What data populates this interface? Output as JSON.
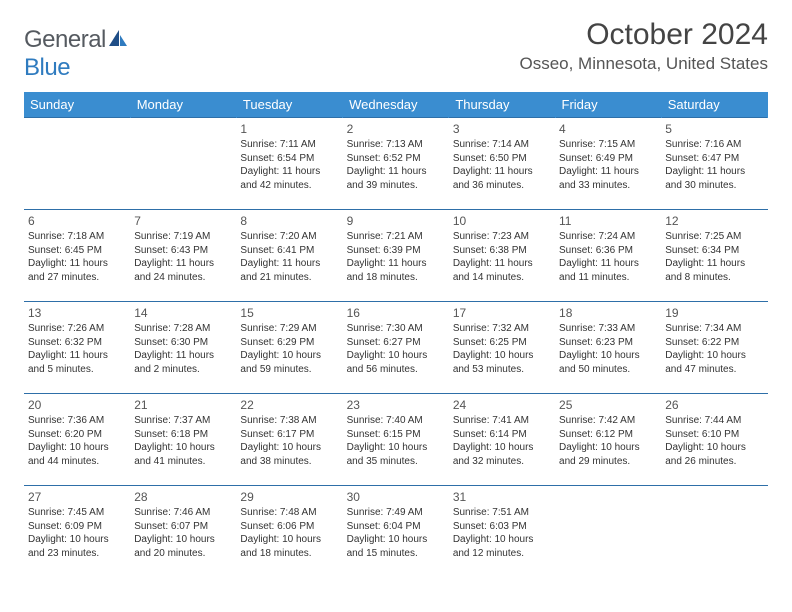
{
  "logo": {
    "general": "General",
    "blue": "Blue"
  },
  "header": {
    "title": "October 2024",
    "location": "Osseo, Minnesota, United States"
  },
  "dow": [
    "Sunday",
    "Monday",
    "Tuesday",
    "Wednesday",
    "Thursday",
    "Friday",
    "Saturday"
  ],
  "colors": {
    "header_bg": "#3a8dd0",
    "rule": "#2e6fa8",
    "logo_blue": "#2f7bbf"
  },
  "weeks": [
    [
      null,
      null,
      {
        "n": "1",
        "sr": "Sunrise: 7:11 AM",
        "ss": "Sunset: 6:54 PM",
        "dl1": "Daylight: 11 hours",
        "dl2": "and 42 minutes."
      },
      {
        "n": "2",
        "sr": "Sunrise: 7:13 AM",
        "ss": "Sunset: 6:52 PM",
        "dl1": "Daylight: 11 hours",
        "dl2": "and 39 minutes."
      },
      {
        "n": "3",
        "sr": "Sunrise: 7:14 AM",
        "ss": "Sunset: 6:50 PM",
        "dl1": "Daylight: 11 hours",
        "dl2": "and 36 minutes."
      },
      {
        "n": "4",
        "sr": "Sunrise: 7:15 AM",
        "ss": "Sunset: 6:49 PM",
        "dl1": "Daylight: 11 hours",
        "dl2": "and 33 minutes."
      },
      {
        "n": "5",
        "sr": "Sunrise: 7:16 AM",
        "ss": "Sunset: 6:47 PM",
        "dl1": "Daylight: 11 hours",
        "dl2": "and 30 minutes."
      }
    ],
    [
      {
        "n": "6",
        "sr": "Sunrise: 7:18 AM",
        "ss": "Sunset: 6:45 PM",
        "dl1": "Daylight: 11 hours",
        "dl2": "and 27 minutes."
      },
      {
        "n": "7",
        "sr": "Sunrise: 7:19 AM",
        "ss": "Sunset: 6:43 PM",
        "dl1": "Daylight: 11 hours",
        "dl2": "and 24 minutes."
      },
      {
        "n": "8",
        "sr": "Sunrise: 7:20 AM",
        "ss": "Sunset: 6:41 PM",
        "dl1": "Daylight: 11 hours",
        "dl2": "and 21 minutes."
      },
      {
        "n": "9",
        "sr": "Sunrise: 7:21 AM",
        "ss": "Sunset: 6:39 PM",
        "dl1": "Daylight: 11 hours",
        "dl2": "and 18 minutes."
      },
      {
        "n": "10",
        "sr": "Sunrise: 7:23 AM",
        "ss": "Sunset: 6:38 PM",
        "dl1": "Daylight: 11 hours",
        "dl2": "and 14 minutes."
      },
      {
        "n": "11",
        "sr": "Sunrise: 7:24 AM",
        "ss": "Sunset: 6:36 PM",
        "dl1": "Daylight: 11 hours",
        "dl2": "and 11 minutes."
      },
      {
        "n": "12",
        "sr": "Sunrise: 7:25 AM",
        "ss": "Sunset: 6:34 PM",
        "dl1": "Daylight: 11 hours",
        "dl2": "and 8 minutes."
      }
    ],
    [
      {
        "n": "13",
        "sr": "Sunrise: 7:26 AM",
        "ss": "Sunset: 6:32 PM",
        "dl1": "Daylight: 11 hours",
        "dl2": "and 5 minutes."
      },
      {
        "n": "14",
        "sr": "Sunrise: 7:28 AM",
        "ss": "Sunset: 6:30 PM",
        "dl1": "Daylight: 11 hours",
        "dl2": "and 2 minutes."
      },
      {
        "n": "15",
        "sr": "Sunrise: 7:29 AM",
        "ss": "Sunset: 6:29 PM",
        "dl1": "Daylight: 10 hours",
        "dl2": "and 59 minutes."
      },
      {
        "n": "16",
        "sr": "Sunrise: 7:30 AM",
        "ss": "Sunset: 6:27 PM",
        "dl1": "Daylight: 10 hours",
        "dl2": "and 56 minutes."
      },
      {
        "n": "17",
        "sr": "Sunrise: 7:32 AM",
        "ss": "Sunset: 6:25 PM",
        "dl1": "Daylight: 10 hours",
        "dl2": "and 53 minutes."
      },
      {
        "n": "18",
        "sr": "Sunrise: 7:33 AM",
        "ss": "Sunset: 6:23 PM",
        "dl1": "Daylight: 10 hours",
        "dl2": "and 50 minutes."
      },
      {
        "n": "19",
        "sr": "Sunrise: 7:34 AM",
        "ss": "Sunset: 6:22 PM",
        "dl1": "Daylight: 10 hours",
        "dl2": "and 47 minutes."
      }
    ],
    [
      {
        "n": "20",
        "sr": "Sunrise: 7:36 AM",
        "ss": "Sunset: 6:20 PM",
        "dl1": "Daylight: 10 hours",
        "dl2": "and 44 minutes."
      },
      {
        "n": "21",
        "sr": "Sunrise: 7:37 AM",
        "ss": "Sunset: 6:18 PM",
        "dl1": "Daylight: 10 hours",
        "dl2": "and 41 minutes."
      },
      {
        "n": "22",
        "sr": "Sunrise: 7:38 AM",
        "ss": "Sunset: 6:17 PM",
        "dl1": "Daylight: 10 hours",
        "dl2": "and 38 minutes."
      },
      {
        "n": "23",
        "sr": "Sunrise: 7:40 AM",
        "ss": "Sunset: 6:15 PM",
        "dl1": "Daylight: 10 hours",
        "dl2": "and 35 minutes."
      },
      {
        "n": "24",
        "sr": "Sunrise: 7:41 AM",
        "ss": "Sunset: 6:14 PM",
        "dl1": "Daylight: 10 hours",
        "dl2": "and 32 minutes."
      },
      {
        "n": "25",
        "sr": "Sunrise: 7:42 AM",
        "ss": "Sunset: 6:12 PM",
        "dl1": "Daylight: 10 hours",
        "dl2": "and 29 minutes."
      },
      {
        "n": "26",
        "sr": "Sunrise: 7:44 AM",
        "ss": "Sunset: 6:10 PM",
        "dl1": "Daylight: 10 hours",
        "dl2": "and 26 minutes."
      }
    ],
    [
      {
        "n": "27",
        "sr": "Sunrise: 7:45 AM",
        "ss": "Sunset: 6:09 PM",
        "dl1": "Daylight: 10 hours",
        "dl2": "and 23 minutes."
      },
      {
        "n": "28",
        "sr": "Sunrise: 7:46 AM",
        "ss": "Sunset: 6:07 PM",
        "dl1": "Daylight: 10 hours",
        "dl2": "and 20 minutes."
      },
      {
        "n": "29",
        "sr": "Sunrise: 7:48 AM",
        "ss": "Sunset: 6:06 PM",
        "dl1": "Daylight: 10 hours",
        "dl2": "and 18 minutes."
      },
      {
        "n": "30",
        "sr": "Sunrise: 7:49 AM",
        "ss": "Sunset: 6:04 PM",
        "dl1": "Daylight: 10 hours",
        "dl2": "and 15 minutes."
      },
      {
        "n": "31",
        "sr": "Sunrise: 7:51 AM",
        "ss": "Sunset: 6:03 PM",
        "dl1": "Daylight: 10 hours",
        "dl2": "and 12 minutes."
      },
      null,
      null
    ]
  ]
}
